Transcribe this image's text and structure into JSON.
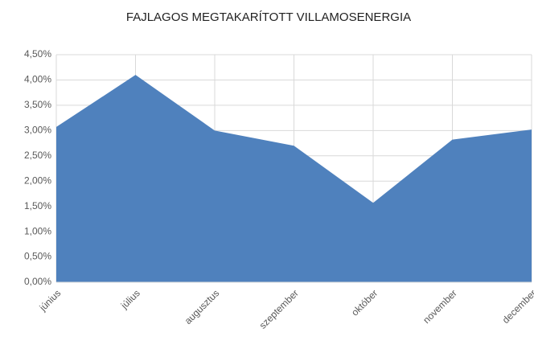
{
  "chart_data": {
    "type": "area",
    "title": "FAJLAGOS MEGTAKARÍTOTT VILLAMOSENERGIA",
    "categories": [
      "június",
      "július",
      "augusztus",
      "szeptember",
      "október",
      "november",
      "december"
    ],
    "values": [
      3.07,
      4.1,
      3.0,
      2.7,
      1.57,
      2.82,
      3.02
    ],
    "color": "#4f81bd",
    "ylim": [
      0,
      4.5
    ],
    "yticks": [
      {
        "value": 0,
        "label": "0,00%"
      },
      {
        "value": 0.5,
        "label": "0,50%"
      },
      {
        "value": 1,
        "label": "1,00%"
      },
      {
        "value": 1.5,
        "label": "1,50%"
      },
      {
        "value": 2,
        "label": "2,00%"
      },
      {
        "value": 2.5,
        "label": "2,50%"
      },
      {
        "value": 3,
        "label": "3,00%"
      },
      {
        "value": 3.5,
        "label": "3,50%"
      },
      {
        "value": 4,
        "label": "4,00%"
      },
      {
        "value": 4.5,
        "label": "4,50%"
      }
    ],
    "grid": true
  }
}
